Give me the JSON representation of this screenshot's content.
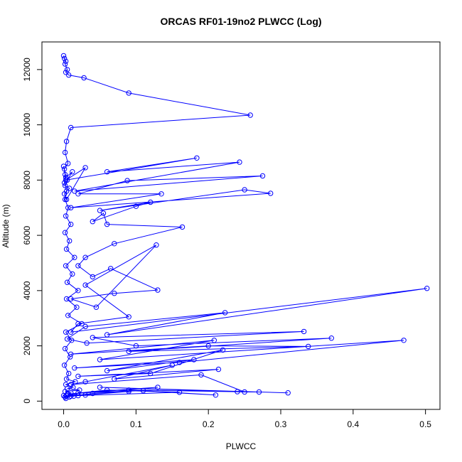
{
  "chart_data": {
    "type": "line",
    "title": "ORCAS RF01-19no2 PLWCC (Log)",
    "xlabel": "PLWCC",
    "ylabel": "Altitude (m)",
    "xlim": [
      -0.03,
      0.52
    ],
    "ylim": [
      -300,
      13000
    ],
    "x_ticks": [
      0.0,
      0.1,
      0.2,
      0.3,
      0.4,
      0.5
    ],
    "x_tick_labels": [
      "0.0",
      "0.1",
      "0.2",
      "0.3",
      "0.4",
      "0.5"
    ],
    "y_ticks": [
      0,
      2000,
      4000,
      6000,
      8000,
      10000,
      12000
    ],
    "y_tick_labels": [
      "0",
      "2000",
      "4000",
      "6000",
      "8000",
      "10000",
      "12000"
    ],
    "grid": false,
    "legend": "none",
    "series": [
      {
        "color": "#0000ff",
        "marker": "open-circle",
        "x": [
          0.0,
          0.001,
          0.003,
          0.002,
          0.005,
          0.003,
          0.007,
          0.028,
          0.09,
          0.258,
          0.01,
          0.004,
          0.002,
          0.006,
          0.001,
          0.003,
          0.012,
          0.005,
          0.002,
          0.008,
          0.001,
          0.004,
          0.03,
          0.003,
          0.184,
          0.06,
          0.243,
          0.015,
          0.275,
          0.088,
          0.02,
          0.135,
          0.01,
          0.286,
          0.25,
          0.05,
          0.12,
          0.1,
          0.04,
          0.055,
          0.06,
          0.164,
          0.07,
          0.03,
          0.02,
          0.04,
          0.065,
          0.13,
          0.07,
          0.01,
          0.045,
          0.128,
          0.03,
          0.09,
          0.02,
          0.01,
          0.502,
          0.06,
          0.223,
          0.03,
          0.005,
          0.032,
          0.332,
          0.04,
          0.1,
          0.37,
          0.09,
          0.338,
          0.2,
          0.01,
          0.208,
          0.05,
          0.47,
          0.16,
          0.015,
          0.18,
          0.06,
          0.22,
          0.12,
          0.02,
          0.214,
          0.07,
          0.15,
          0.03,
          0.01,
          0.19,
          0.25,
          0.05,
          0.31,
          0.27,
          0.24,
          0.09,
          0.21,
          0.11,
          0.02,
          0.13,
          0.005,
          0.06,
          0.16,
          0.02,
          0.002,
          0.04,
          0.09,
          0.01,
          0.003,
          0.0
        ],
        "y": [
          12500,
          12400,
          12300,
          12200,
          12000,
          11900,
          11800,
          11700,
          11150,
          10350,
          9900,
          9400,
          9000,
          8600,
          8400,
          8100,
          8300,
          8000,
          7800,
          7700,
          7500,
          7300,
          8450,
          8000,
          8800,
          8300,
          8650,
          7600,
          8150,
          7980,
          7500,
          7500,
          7000,
          7520,
          7650,
          6900,
          7200,
          7050,
          6500,
          6800,
          6400,
          6300,
          5700,
          5200,
          4900,
          4500,
          4800,
          4020,
          3900,
          3700,
          3400,
          5650,
          4200,
          3050,
          2800,
          2500,
          4080,
          2400,
          3200,
          2700,
          2250,
          2100,
          2520,
          2300,
          2000,
          2280,
          1800,
          1980,
          2000,
          1700,
          2200,
          1500,
          2200,
          1400,
          1200,
          1500,
          1100,
          1850,
          1000,
          900,
          1150,
          800,
          1300,
          700,
          600,
          950,
          330,
          500,
          300,
          330,
          340,
          400,
          220,
          380,
          300,
          500,
          250,
          400,
          320,
          200,
          150,
          280,
          350,
          180,
          100,
          200
        ]
      },
      {
        "color": "#0000ff",
        "marker": "open-circle",
        "x": [
          0.0,
          0.002,
          0.001,
          0.004,
          0.002,
          0.006,
          0.003,
          0.01,
          0.002,
          0.008,
          0.004,
          0.015,
          0.003,
          0.012,
          0.005,
          0.02,
          0.004,
          0.018,
          0.006,
          0.025,
          0.003,
          0.011,
          0.002,
          0.009,
          0.001,
          0.007,
          0.004,
          0.016,
          0.003,
          0.013,
          0.005,
          0.022,
          0.002,
          0.01,
          0.006,
          0.03,
          0.004,
          0.014,
          0.002,
          0.008
        ],
        "y": [
          8500,
          8200,
          7900,
          7600,
          7300,
          7000,
          6700,
          6400,
          6100,
          5800,
          5500,
          5200,
          4900,
          4600,
          4300,
          4000,
          3700,
          3400,
          3100,
          2800,
          2500,
          2200,
          1900,
          1600,
          1300,
          1000,
          800,
          700,
          600,
          500,
          450,
          400,
          350,
          300,
          250,
          220,
          200,
          180,
          160,
          150
        ]
      }
    ]
  }
}
